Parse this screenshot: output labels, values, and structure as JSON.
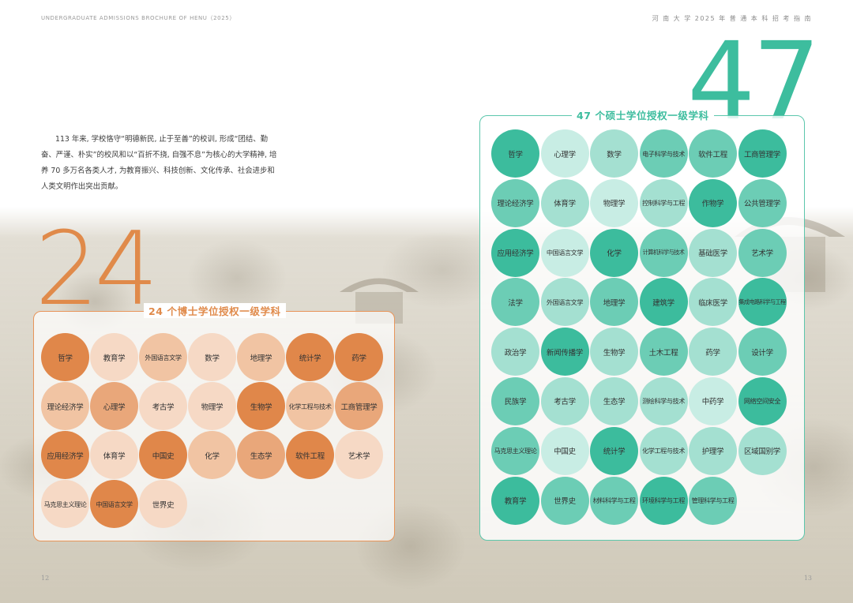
{
  "header": {
    "left": "UNDERGRADUATE ADMISSIONS BROCHURE OF HENU（2025）",
    "right": "河 南 大 学 2025 年 普 通 本 科 招 考 指 南"
  },
  "page_numbers": {
    "left": "12",
    "right": "13"
  },
  "intro": "113 年来, 学校恪守“明德新民, 止于至善”的校训, 形成“团结、勤奋、严谨、朴实”的校风和以“百折不挠, 自强不息”为核心的大学精神, 培养 70 多万名各类人才, 为教育振兴、科技创新、文化传承、社会进步和人类文明作出突出贡献。",
  "doctoral": {
    "big_number": "24",
    "title": "24 个博士学位授权一级学科",
    "accent_color": "#e0874a",
    "disciplines": [
      {
        "name": "哲学",
        "shade": 1
      },
      {
        "name": "教育学",
        "shade": 4
      },
      {
        "name": "外国语言文学",
        "shade": 3
      },
      {
        "name": "数学",
        "shade": 4
      },
      {
        "name": "地理学",
        "shade": 3
      },
      {
        "name": "统计学",
        "shade": 1
      },
      {
        "name": "药学",
        "shade": 1
      },
      {
        "name": "理论经济学",
        "shade": 3
      },
      {
        "name": "心理学",
        "shade": 2
      },
      {
        "name": "考古学",
        "shade": 4
      },
      {
        "name": "物理学",
        "shade": 4
      },
      {
        "name": "生物学",
        "shade": 1
      },
      {
        "name": "化学工程与技术",
        "shade": 3
      },
      {
        "name": "工商管理学",
        "shade": 2
      },
      {
        "name": "应用经济学",
        "shade": 1
      },
      {
        "name": "体育学",
        "shade": 4
      },
      {
        "name": "中国史",
        "shade": 1
      },
      {
        "name": "化学",
        "shade": 3
      },
      {
        "name": "生态学",
        "shade": 2
      },
      {
        "name": "软件工程",
        "shade": 1
      },
      {
        "name": "艺术学",
        "shade": 4
      },
      {
        "name": "马克思主义理论",
        "shade": 4
      },
      {
        "name": "中国语言文学",
        "shade": 1
      },
      {
        "name": "世界史",
        "shade": 4
      }
    ]
  },
  "masters": {
    "big_number": "47",
    "title": "47 个硕士学位授权一级学科",
    "accent_color": "#3cbc9d",
    "disciplines": [
      {
        "name": "哲学",
        "shade": 1
      },
      {
        "name": "心理学",
        "shade": 4
      },
      {
        "name": "数学",
        "shade": 3
      },
      {
        "name": "电子科学与技术",
        "shade": 2
      },
      {
        "name": "软件工程",
        "shade": 2
      },
      {
        "name": "工商管理学",
        "shade": 1
      },
      {
        "name": "理论经济学",
        "shade": 2
      },
      {
        "name": "体育学",
        "shade": 3
      },
      {
        "name": "物理学",
        "shade": 4
      },
      {
        "name": "控制科学与工程",
        "shade": 3
      },
      {
        "name": "作物学",
        "shade": 1
      },
      {
        "name": "公共管理学",
        "shade": 2
      },
      {
        "name": "应用经济学",
        "shade": 1
      },
      {
        "name": "中国语言文学",
        "shade": 4
      },
      {
        "name": "化学",
        "shade": 1
      },
      {
        "name": "计算机科学与技术",
        "shade": 2
      },
      {
        "name": "基础医学",
        "shade": 3
      },
      {
        "name": "艺术学",
        "shade": 2
      },
      {
        "name": "法学",
        "shade": 2
      },
      {
        "name": "外国语言文学",
        "shade": 3
      },
      {
        "name": "地理学",
        "shade": 2
      },
      {
        "name": "建筑学",
        "shade": 1
      },
      {
        "name": "临床医学",
        "shade": 3
      },
      {
        "name": "集成电路科学与工程",
        "shade": 1
      },
      {
        "name": "政治学",
        "shade": 3
      },
      {
        "name": "新闻传播学",
        "shade": 1
      },
      {
        "name": "生物学",
        "shade": 3
      },
      {
        "name": "土木工程",
        "shade": 2
      },
      {
        "name": "药学",
        "shade": 3
      },
      {
        "name": "设计学",
        "shade": 2
      },
      {
        "name": "民族学",
        "shade": 2
      },
      {
        "name": "考古学",
        "shade": 3
      },
      {
        "name": "生态学",
        "shade": 3
      },
      {
        "name": "测绘科学与技术",
        "shade": 3
      },
      {
        "name": "中药学",
        "shade": 4
      },
      {
        "name": "网络空间安全",
        "shade": 1
      },
      {
        "name": "马克思主义理论",
        "shade": 2
      },
      {
        "name": "中国史",
        "shade": 4
      },
      {
        "name": "统计学",
        "shade": 1
      },
      {
        "name": "化学工程与技术",
        "shade": 3
      },
      {
        "name": "护理学",
        "shade": 3
      },
      {
        "name": "区域国别学",
        "shade": 3
      },
      {
        "name": "教育学",
        "shade": 1
      },
      {
        "name": "世界史",
        "shade": 2
      },
      {
        "name": "材料科学与工程",
        "shade": 2
      },
      {
        "name": "环境科学与工程",
        "shade": 1
      },
      {
        "name": "管理科学与工程",
        "shade": 2
      }
    ]
  }
}
